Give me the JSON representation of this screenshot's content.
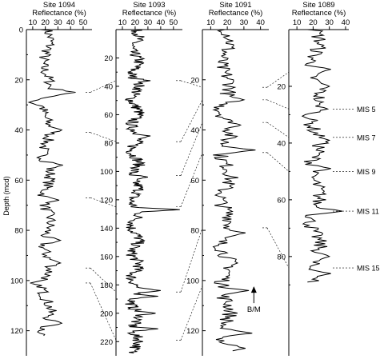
{
  "chart_data": {
    "type": "line",
    "y_axis_title": "Depth (mcd)",
    "panels": [
      {
        "site": "Site 1094",
        "xlabel": "Reflectance (%)",
        "xticks": [
          10,
          20,
          30,
          40,
          50
        ],
        "xlim": [
          5,
          57
        ],
        "yticks": [
          0,
          20,
          40,
          60,
          80,
          100,
          120
        ],
        "ylim": [
          0,
          130
        ],
        "range": [
          0,
          122
        ],
        "mean": 21,
        "peaks": [
          [
            25,
            44
          ],
          [
            29,
            7
          ],
          [
            40,
            33
          ],
          [
            54,
            34
          ],
          [
            68,
            31
          ],
          [
            84,
            32
          ],
          [
            93,
            32
          ],
          [
            101,
            8
          ],
          [
            117,
            33
          ]
        ]
      },
      {
        "site": "Site 1093",
        "xlabel": "Reflectance (%)",
        "xticks": [
          10,
          20,
          30,
          40,
          50
        ],
        "xlim": [
          5,
          57
        ],
        "yticks": [
          20,
          40,
          60,
          80,
          100,
          120,
          140,
          160,
          180,
          200,
          220
        ],
        "ylim": [
          0,
          230
        ],
        "range": [
          0,
          228
        ],
        "mean": 20,
        "peaks": [
          [
            36,
            32
          ],
          [
            75,
            32
          ],
          [
            104,
            30
          ],
          [
            127,
            55
          ],
          [
            184,
            40
          ],
          [
            188,
            38
          ],
          [
            200,
            36
          ],
          [
            211,
            38
          ]
        ]
      },
      {
        "site": "Site 1091",
        "xlabel": "Reflectance (%)",
        "xticks": [
          10,
          20,
          30,
          40
        ],
        "xlim": [
          5,
          45
        ],
        "yticks": [
          20,
          40,
          60,
          80,
          100,
          120
        ],
        "ylim": [
          0,
          130
        ],
        "range": [
          0,
          128
        ],
        "mean": 19,
        "peaks": [
          [
            28,
            30
          ],
          [
            38,
            28
          ],
          [
            48,
            37
          ],
          [
            81,
            31
          ],
          [
            104,
            33
          ],
          [
            121,
            35
          ],
          [
            127,
            31
          ]
        ]
      },
      {
        "site": "Site 1089",
        "xlabel": "Reflectance (%)",
        "xticks": [
          10,
          20,
          30,
          40
        ],
        "xlim": [
          5,
          42
        ],
        "yticks": [
          20,
          40,
          60,
          80
        ],
        "ylim": [
          0,
          115
        ],
        "range": [
          0,
          89
        ],
        "mean": 21,
        "peaks": [
          [
            14,
            31
          ],
          [
            20,
            30
          ],
          [
            28,
            29
          ],
          [
            39,
            30
          ],
          [
            49,
            31
          ],
          [
            64,
            38
          ],
          [
            80,
            30
          ],
          [
            86,
            31
          ]
        ]
      }
    ],
    "correlation_lines": [
      {
        "from": [
          0,
          25
        ],
        "to": [
          1,
          36
        ]
      },
      {
        "from": [
          0,
          41
        ],
        "to": [
          1,
          79
        ]
      },
      {
        "from": [
          0,
          67
        ],
        "to": [
          1,
          125
        ]
      },
      {
        "from": [
          0,
          95
        ],
        "to": [
          1,
          185
        ]
      },
      {
        "from": [
          0,
          101
        ],
        "to": [
          1,
          219
        ]
      },
      {
        "from": [
          1,
          36
        ],
        "to": [
          2,
          23
        ]
      },
      {
        "from": [
          1,
          79
        ],
        "to": [
          2,
          28
        ]
      },
      {
        "from": [
          1,
          103
        ],
        "to": [
          2,
          37
        ]
      },
      {
        "from": [
          1,
          125
        ],
        "to": [
          2,
          49
        ]
      },
      {
        "from": [
          1,
          185
        ],
        "to": [
          2,
          79
        ]
      },
      {
        "from": [
          1,
          219
        ],
        "to": [
          2,
          102
        ]
      },
      {
        "from": [
          2,
          23
        ],
        "to": [
          3,
          15
        ]
      },
      {
        "from": [
          2,
          28
        ],
        "to": [
          3,
          28
        ]
      },
      {
        "from": [
          2,
          37
        ],
        "to": [
          3,
          38
        ]
      },
      {
        "from": [
          2,
          49
        ],
        "to": [
          3,
          50
        ]
      },
      {
        "from": [
          2,
          79
        ],
        "to": [
          3,
          84
        ]
      }
    ],
    "mis_labels": [
      {
        "label": "MIS 5",
        "depth": 28
      },
      {
        "label": "MIS 7",
        "depth": 38
      },
      {
        "label": "MIS 9",
        "depth": 50
      },
      {
        "label": "MIS 11",
        "depth": 64
      },
      {
        "label": "MIS 15",
        "depth": 84
      }
    ],
    "annotation": {
      "label": "B/M",
      "panel": 2,
      "depth": 102,
      "value": 36
    }
  }
}
